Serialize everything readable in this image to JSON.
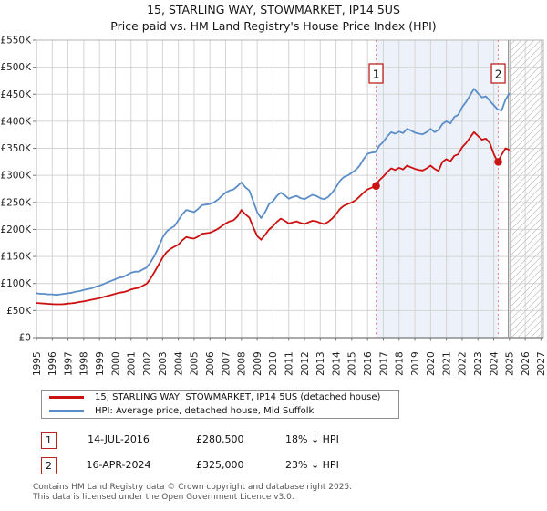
{
  "title": "15, STARLING WAY, STOWMARKET, IP14 5US",
  "subtitle": "Price paid vs. HM Land Registry's House Price Index (HPI)",
  "chart_data": {
    "type": "line",
    "title": "15, STARLING WAY, STOWMARKET, IP14 5US — Price paid vs. HPI",
    "x_unit": "year",
    "y_unit": "GBP thousands",
    "xlim": [
      1995,
      2027
    ],
    "ylim_k": [
      0,
      550
    ],
    "grid": true,
    "legend_position": "bottom-left",
    "y_tick_labels": [
      "£0",
      "£50K",
      "£100K",
      "£150K",
      "£200K",
      "£250K",
      "£300K",
      "£350K",
      "£400K",
      "£450K",
      "£500K",
      "£550K"
    ],
    "x_ticks": [
      1995,
      1996,
      1997,
      1998,
      1999,
      2000,
      2001,
      2002,
      2003,
      2004,
      2005,
      2006,
      2007,
      2008,
      2009,
      2010,
      2011,
      2012,
      2013,
      2014,
      2015,
      2016,
      2017,
      2018,
      2019,
      2020,
      2021,
      2022,
      2023,
      2024,
      2025,
      2026,
      2027
    ],
    "series": [
      {
        "name": "15, STARLING WAY, STOWMARKET, IP14 5US (detached house)",
        "color": "#cc1111",
        "x_start": 1995,
        "x_step": 0.25,
        "values_k": [
          64,
          63.5,
          63,
          62.5,
          62,
          61.5,
          61.5,
          62,
          63,
          63.5,
          64.5,
          66,
          67,
          68.5,
          70,
          71.5,
          73,
          75,
          77,
          79,
          81,
          83,
          84,
          86,
          89,
          91,
          92,
          96,
          100,
          110,
          122,
          135,
          148,
          158,
          164,
          168,
          172,
          180,
          186,
          184,
          183,
          187,
          192,
          193,
          194,
          197,
          201,
          206,
          211,
          215,
          217,
          224,
          236,
          228,
          222,
          204,
          188,
          181,
          190,
          200,
          206,
          214,
          220,
          216,
          211,
          213,
          215,
          212,
          210,
          213,
          216,
          215,
          212,
          210,
          214,
          220,
          228,
          238,
          244,
          247,
          250,
          254,
          261,
          268,
          274,
          277,
          280.5,
          291,
          298,
          306,
          313,
          310,
          314,
          311,
          318,
          315,
          312,
          310,
          309,
          313,
          318,
          312,
          308,
          325,
          330,
          326,
          336,
          339,
          352,
          360,
          370,
          380,
          373,
          366,
          368,
          360,
          340,
          325,
          338,
          350,
          347
        ]
      },
      {
        "name": "HPI: Average price, detached house, Mid Suffolk",
        "color": "#5b8dc8",
        "x_start": 1995,
        "x_step": 0.25,
        "values_k": [
          82,
          81,
          81,
          80,
          80,
          79,
          80,
          81,
          82,
          83,
          85,
          86,
          88,
          90,
          91,
          94,
          96,
          99,
          102,
          105,
          108,
          111,
          112,
          116,
          120,
          122,
          122,
          126,
          130,
          140,
          152,
          168,
          185,
          196,
          202,
          206,
          217,
          228,
          236,
          234,
          232,
          238,
          245,
          246,
          247,
          250,
          255,
          262,
          268,
          272,
          274,
          280,
          287,
          278,
          272,
          252,
          232,
          221,
          232,
          247,
          252,
          262,
          268,
          263,
          257,
          260,
          262,
          258,
          256,
          260,
          264,
          262,
          258,
          256,
          260,
          268,
          278,
          290,
          297,
          300,
          305,
          310,
          318,
          330,
          340,
          342,
          343,
          355,
          362,
          372,
          380,
          377,
          381,
          378,
          386,
          383,
          379,
          377,
          376,
          380,
          386,
          380,
          384,
          395,
          400,
          396,
          408,
          412,
          426,
          436,
          448,
          460,
          452,
          444,
          446,
          438,
          430,
          422,
          420,
          440,
          452
        ]
      }
    ],
    "markers": [
      {
        "label": "1",
        "x": 2016.54,
        "value_k": 280.5,
        "date": "14-JUL-2016"
      },
      {
        "label": "2",
        "x": 2024.29,
        "value_k": 325,
        "date": "16-APR-2024"
      }
    ],
    "shaded_region": {
      "from": 2016.54,
      "to": 2024.29,
      "color": "#edf2fa"
    },
    "hatched_region": {
      "from": 2025,
      "to": 2027.15,
      "style": "diagonal-hatch"
    },
    "data_end_line": 2025,
    "marker_line_color": "#f08484",
    "grid_color": "#d4d4d4",
    "axis_color": "#b5b5b5"
  },
  "legend": {
    "items": [
      {
        "label": "15, STARLING WAY, STOWMARKET, IP14 5US (detached house)",
        "color": "#cc1111"
      },
      {
        "label": "HPI: Average price, detached house, Mid Suffolk",
        "color": "#5b8dc8"
      }
    ]
  },
  "annotations": [
    {
      "num": "1",
      "date": "14-JUL-2016",
      "price": "£280,500",
      "hpi_diff": "18% ↓ HPI"
    },
    {
      "num": "2",
      "date": "16-APR-2024",
      "price": "£325,000",
      "hpi_diff": "23% ↓ HPI"
    }
  ],
  "footer": {
    "line1": "Contains HM Land Registry data © Crown copyright and database right 2025.",
    "line2": "This data is licensed under the Open Government Licence v3.0."
  }
}
